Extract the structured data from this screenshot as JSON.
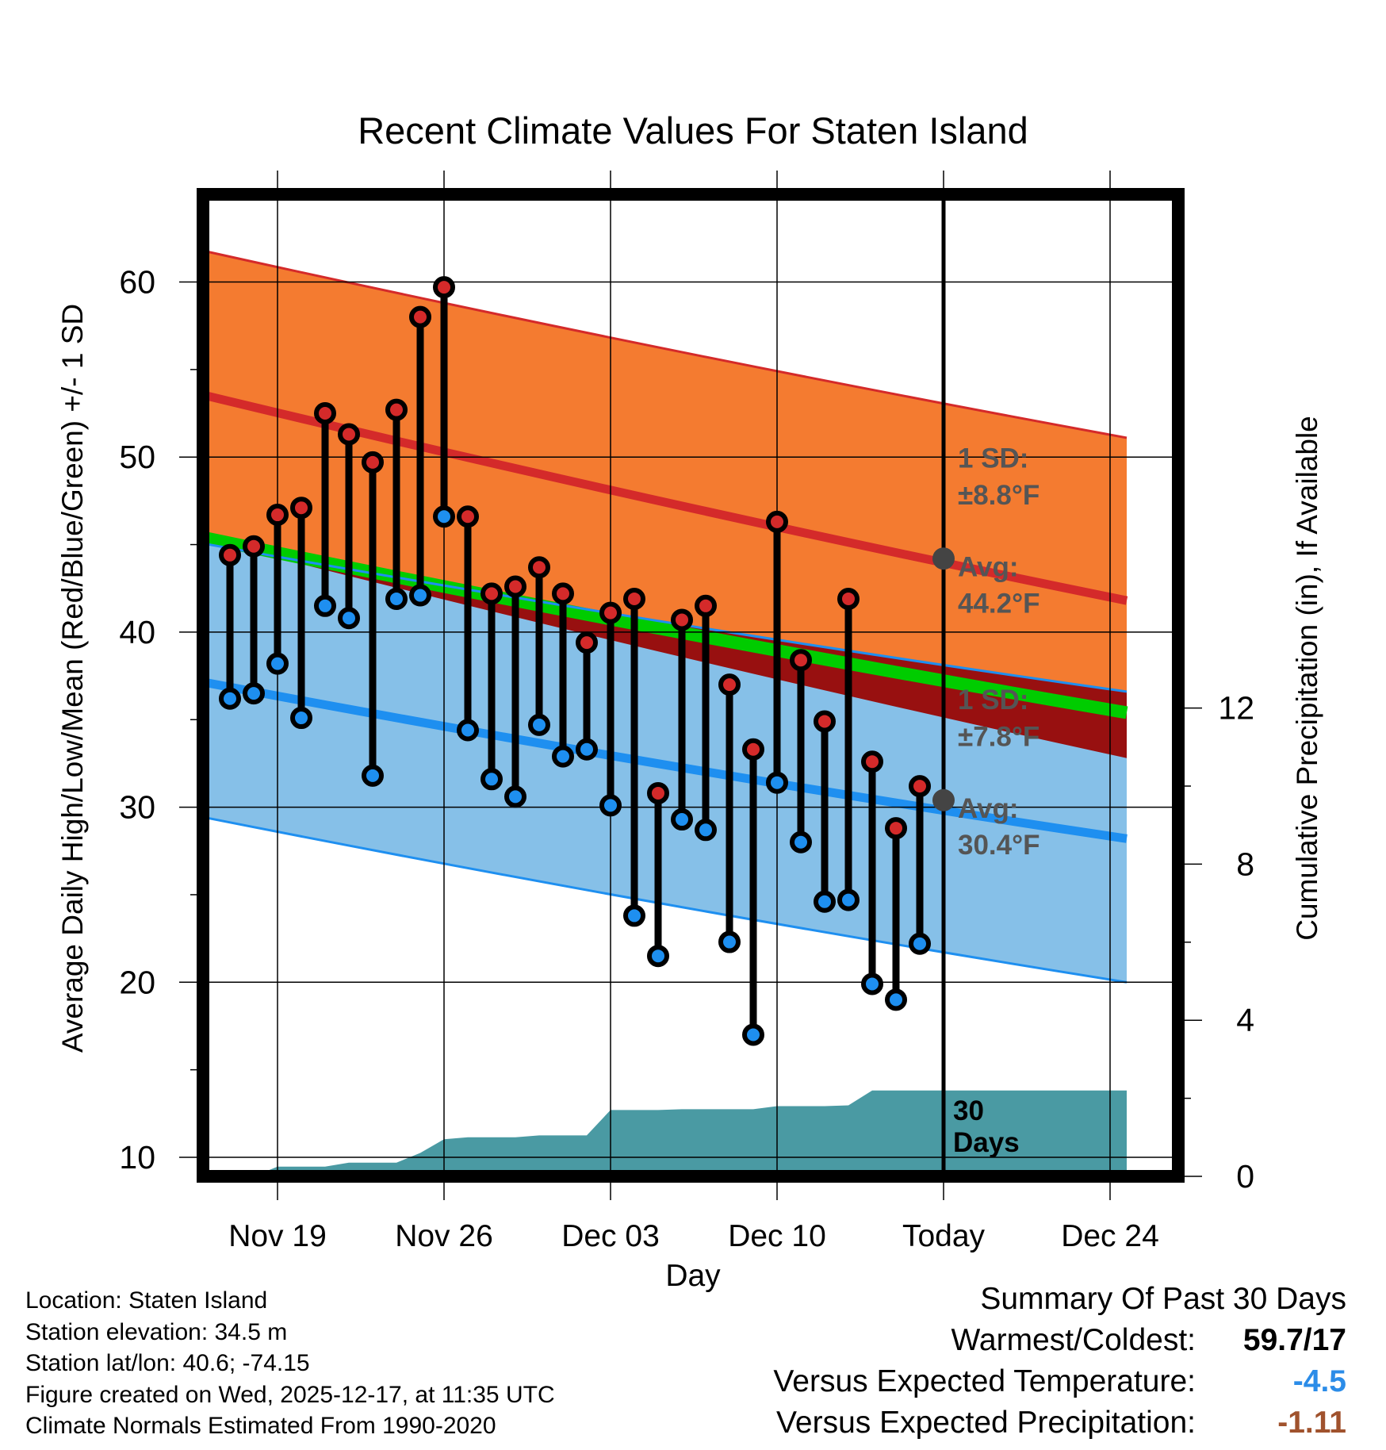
{
  "chart_data": {
    "type": "line",
    "title": "Recent Climate Values For Staten Island",
    "xlabel": "Day",
    "ylabel": "Average Daily High/Low/Mean (Red/Blue/Green) +/- 1 SD",
    "ylabel_right": "Cumulative Precipitation (in), If Available",
    "x_range_days": [
      -33,
      8
    ],
    "ylim": [
      9,
      65
    ],
    "ylim_right": [
      0,
      24.92
    ],
    "yticks": [
      10,
      20,
      30,
      40,
      50,
      60
    ],
    "yticks_right": [
      0,
      4,
      8,
      12
    ],
    "xticks": [
      {
        "day": -28,
        "label": "Nov 19"
      },
      {
        "day": -21,
        "label": "Nov 26"
      },
      {
        "day": -14,
        "label": "Dec 03"
      },
      {
        "day": -7,
        "label": "Dec 10"
      },
      {
        "day": 0,
        "label": "Today"
      },
      {
        "day": 7,
        "label": "Dec 24"
      }
    ],
    "normals": {
      "days": [
        -32.5,
        7.7
      ],
      "high_plus_sd": [
        62.2,
        51.1
      ],
      "high_avg": [
        54.0,
        41.8
      ],
      "high_minus_sd": [
        45.8,
        32.8
      ],
      "mean_avg": [
        45.8,
        35.4
      ],
      "low_plus_sd": [
        45.4,
        36.6
      ],
      "low_avg": [
        37.5,
        28.2
      ],
      "low_minus_sd": [
        29.8,
        20.0
      ]
    },
    "high_sd_label": "1 SD:",
    "high_sd_value": "±8.8°F",
    "high_avg_label": "Avg:",
    "high_avg_value": "44.2°F",
    "low_sd_label": "1 SD:",
    "low_sd_value": "±7.8°F",
    "low_avg_label": "Avg:",
    "low_avg_value": "30.4°F",
    "today_marker_high": 44.2,
    "today_marker_low": 30.4,
    "days_label_1": "30",
    "days_label_2": "Days",
    "series": [
      {
        "name": "Daily High",
        "days": [
          -30,
          -29,
          -28,
          -27,
          -26,
          -25,
          -24,
          -23,
          -22,
          -21,
          -20,
          -19,
          -18,
          -17,
          -16,
          -15,
          -14,
          -13,
          -12,
          -11,
          -10,
          -9,
          -8,
          -7,
          -6,
          -5,
          -4,
          -3,
          -2,
          -1
        ],
        "values": [
          44.4,
          44.9,
          46.7,
          47.1,
          52.5,
          51.3,
          49.7,
          52.7,
          58.0,
          59.7,
          46.6,
          42.2,
          42.6,
          43.7,
          42.2,
          39.4,
          41.1,
          41.9,
          30.8,
          40.7,
          41.5,
          37.0,
          33.3,
          46.3,
          38.4,
          34.9,
          41.9,
          32.6,
          28.8,
          31.2
        ]
      },
      {
        "name": "Daily Low",
        "days": [
          -30,
          -29,
          -28,
          -27,
          -26,
          -25,
          -24,
          -23,
          -22,
          -21,
          -20,
          -19,
          -18,
          -17,
          -16,
          -15,
          -14,
          -13,
          -12,
          -11,
          -10,
          -9,
          -8,
          -7,
          -6,
          -5,
          -4,
          -3,
          -2,
          -1
        ],
        "values": [
          36.2,
          36.5,
          38.2,
          35.1,
          41.5,
          40.8,
          31.8,
          41.9,
          42.1,
          46.6,
          34.4,
          31.6,
          30.6,
          34.7,
          32.9,
          33.3,
          30.1,
          23.8,
          21.5,
          29.3,
          28.7,
          22.3,
          17.0,
          31.4,
          28.0,
          24.6,
          24.7,
          19.9,
          19.0,
          22.2
        ]
      },
      {
        "name": "Cumulative Precipitation",
        "days": [
          -32.5,
          -31,
          -30,
          -29,
          -28,
          -26,
          -25,
          -24,
          -23,
          -22,
          -21,
          -20,
          -19,
          -18,
          -17,
          -16,
          -15,
          -14,
          -13,
          -12,
          -11,
          -10,
          -9,
          -8,
          -7,
          -6,
          -5,
          -4,
          -3,
          -2,
          -1,
          0,
          7.7
        ],
        "values": [
          0.0,
          0.0,
          0.0,
          0.0,
          0.25,
          0.25,
          0.35,
          0.35,
          0.35,
          0.6,
          0.95,
          1.0,
          1.0,
          1.0,
          1.05,
          1.05,
          1.05,
          1.7,
          1.7,
          1.7,
          1.72,
          1.72,
          1.72,
          1.72,
          1.8,
          1.8,
          1.8,
          1.82,
          2.2,
          2.2,
          2.2,
          2.2,
          2.2
        ]
      }
    ]
  },
  "info": {
    "location": "Location: Staten Island",
    "elevation": "Station elevation: 34.5 m",
    "latlon": "Station lat/lon: 40.6; -74.15",
    "created": "Figure created on Wed, 2025-12-17, at 11:35 UTC",
    "normals": "Climate Normals Estimated From 1990-2020"
  },
  "summary": {
    "title": "Summary Of Past 30 Days",
    "warmest_label": "Warmest/Coldest:",
    "warmest_value": "59.7/17",
    "temp_label": "Versus Expected Temperature:",
    "temp_value": "-4.5",
    "precip_label": "Versus Expected Precipitation:",
    "precip_value": "-1.11",
    "colors": {
      "temp": "#2b8ce8",
      "precip": "#a0522d"
    }
  },
  "colors": {
    "high_band": "#f47b30",
    "high_line": "#d42a2a",
    "low_band": "#86c0e8",
    "low_line": "#1e8ff0",
    "mean_line": "#00cc00",
    "overlap": "#981010",
    "precip": "#4a9aa3",
    "marker_high": "#d42a2a",
    "marker_low": "#1e8ff0",
    "label_grey": "#555555"
  }
}
